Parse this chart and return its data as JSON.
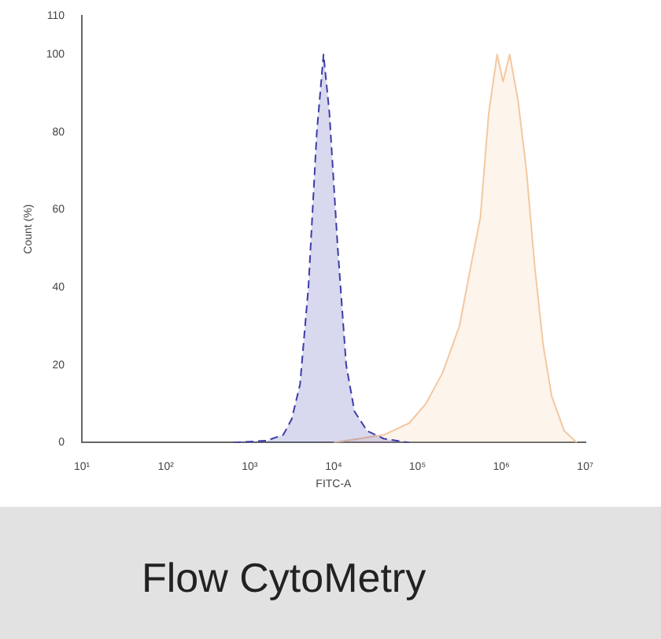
{
  "chart_data": {
    "type": "area",
    "xlabel": "FITC-A",
    "ylabel": "Count (%)",
    "log": "x",
    "xlim": [
      10,
      10000000
    ],
    "xticks": [
      {
        "value": 10,
        "label": "10¹"
      },
      {
        "value": 100,
        "label": "10²"
      },
      {
        "value": 1000,
        "label": "10³"
      },
      {
        "value": 10000,
        "label": "10⁴"
      },
      {
        "value": 100000,
        "label": "10⁵"
      },
      {
        "value": 1000000,
        "label": "10⁶"
      },
      {
        "value": 10000000,
        "label": "10⁷"
      }
    ],
    "ylim": [
      0,
      110
    ],
    "yticks": [
      0,
      20,
      40,
      60,
      80,
      100,
      110
    ],
    "grid": false,
    "legend": false,
    "series": [
      {
        "color": "#3c3ca8",
        "line_style": "dashed",
        "x": [
          631,
          1585,
          2512,
          3162,
          3981,
          5012,
          6310,
          7586,
          8913,
          11220,
          14130,
          17780,
          25120,
          39810,
          79430
        ],
        "values": [
          0,
          0.5,
          2,
          6,
          15,
          40,
          80,
          100,
          85,
          50,
          20,
          8,
          3,
          1,
          0
        ]
      },
      {
        "color": "#f3c8a0",
        "line_style": "solid",
        "x": [
          10000,
          19950,
          39810,
          79430,
          125900,
          199500,
          316200,
          446700,
          562300,
          707900,
          891300,
          1047000,
          1259000,
          1585000,
          1995000,
          2512000,
          3162000,
          3981000,
          5623000,
          7943000
        ],
        "values": [
          0,
          1,
          2,
          5,
          10,
          18,
          30,
          47,
          58,
          85,
          100,
          93,
          100,
          88,
          70,
          45,
          25,
          12,
          3,
          0
        ]
      }
    ],
    "annotations": [
      "Flow CytoMetry"
    ]
  }
}
